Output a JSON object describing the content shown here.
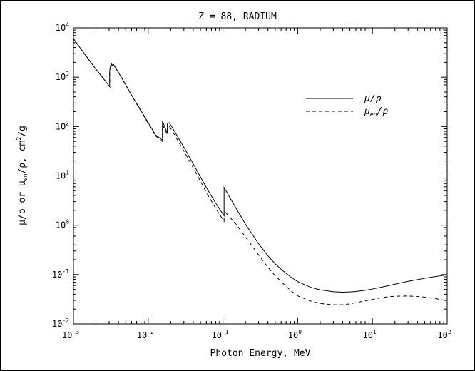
{
  "chart_data": {
    "type": "line",
    "title": "Z = 88,  RADIUM",
    "xlabel": "Photon Energy, MeV",
    "ylabel_parts": {
      "mu": "μ/ρ",
      "or": " or ",
      "mu_en": "μ",
      "en_sub": "en",
      "slash_rho": "/ρ,",
      "unit": " cm",
      "unit_exp": "2",
      "unit_end": "/g"
    },
    "x_scale": "log",
    "y_scale": "log",
    "xlim": [
      0.001,
      100
    ],
    "ylim": [
      0.01,
      10000
    ],
    "x_ticks": [
      {
        "base": "10",
        "exp": "-3",
        "value": 0.001
      },
      {
        "base": "10",
        "exp": "-2",
        "value": 0.01
      },
      {
        "base": "10",
        "exp": "-1",
        "value": 0.1
      },
      {
        "base": "10",
        "exp": "0",
        "value": 1
      },
      {
        "base": "10",
        "exp": "1",
        "value": 10
      },
      {
        "base": "10",
        "exp": "2",
        "value": 100
      }
    ],
    "y_ticks": [
      {
        "base": "10",
        "exp": "-2",
        "value": 0.01
      },
      {
        "base": "10",
        "exp": "-1",
        "value": 0.1
      },
      {
        "base": "10",
        "exp": "0",
        "value": 1
      },
      {
        "base": "10",
        "exp": "1",
        "value": 10
      },
      {
        "base": "10",
        "exp": "2",
        "value": 100
      },
      {
        "base": "10",
        "exp": "3",
        "value": 1000
      },
      {
        "base": "10",
        "exp": "4",
        "value": 10000
      }
    ],
    "legend": {
      "placement": "upper-right",
      "entries": [
        {
          "label_main": "μ/ρ",
          "label_sub": "",
          "label_end": "",
          "style": "solid"
        },
        {
          "label_main": "μ",
          "label_sub": "en",
          "label_end": "/ρ",
          "style": "dashed"
        }
      ]
    },
    "grid": false,
    "series": [
      {
        "style": "solid",
        "points": [
          [
            0.001,
            6000
          ],
          [
            0.0015,
            2600
          ],
          [
            0.002,
            1450
          ],
          [
            0.0025,
            950
          ],
          [
            0.00305,
            640
          ],
          [
            0.00305,
            1350
          ],
          [
            0.0032,
            1950
          ],
          [
            0.00325,
            1700
          ],
          [
            0.0034,
            1850
          ],
          [
            0.0036,
            1600
          ],
          [
            0.004,
            1250
          ],
          [
            0.005,
            700
          ],
          [
            0.006,
            430
          ],
          [
            0.008,
            210
          ],
          [
            0.01,
            120
          ],
          [
            0.0125,
            68
          ],
          [
            0.0155,
            53
          ],
          [
            0.0155,
            125
          ],
          [
            0.016,
            115
          ],
          [
            0.017,
            90
          ],
          [
            0.018,
            75
          ],
          [
            0.018,
            112
          ],
          [
            0.019,
            120
          ],
          [
            0.02,
            108
          ],
          [
            0.03,
            38
          ],
          [
            0.04,
            17.5
          ],
          [
            0.05,
            9.5
          ],
          [
            0.06,
            5.8
          ],
          [
            0.08,
            2.8
          ],
          [
            0.1035,
            1.55
          ],
          [
            0.1035,
            5.8
          ],
          [
            0.15,
            2.2
          ],
          [
            0.2,
            1.05
          ],
          [
            0.3,
            0.42
          ],
          [
            0.4,
            0.24
          ],
          [
            0.5,
            0.165
          ],
          [
            0.6,
            0.128
          ],
          [
            0.8,
            0.09
          ],
          [
            1,
            0.072
          ],
          [
            1.5,
            0.055
          ],
          [
            2,
            0.049
          ],
          [
            3,
            0.045
          ],
          [
            4,
            0.044
          ],
          [
            5,
            0.0445
          ],
          [
            6,
            0.0455
          ],
          [
            8,
            0.048
          ],
          [
            10,
            0.051
          ],
          [
            15,
            0.058
          ],
          [
            20,
            0.064
          ],
          [
            30,
            0.073
          ],
          [
            40,
            0.079
          ],
          [
            50,
            0.084
          ],
          [
            60,
            0.088
          ],
          [
            80,
            0.094
          ],
          [
            100,
            0.099
          ]
        ]
      },
      {
        "style": "dashed",
        "points": [
          [
            0.001,
            6000
          ],
          [
            0.0015,
            2600
          ],
          [
            0.002,
            1450
          ],
          [
            0.0025,
            950
          ],
          [
            0.00305,
            640
          ],
          [
            0.00305,
            1350
          ],
          [
            0.0032,
            1950
          ],
          [
            0.00325,
            1700
          ],
          [
            0.0034,
            1850
          ],
          [
            0.0036,
            1600
          ],
          [
            0.004,
            1250
          ],
          [
            0.005,
            690
          ],
          [
            0.006,
            425
          ],
          [
            0.008,
            205
          ],
          [
            0.01,
            115
          ],
          [
            0.0125,
            65
          ],
          [
            0.0155,
            50
          ],
          [
            0.0155,
            110
          ],
          [
            0.016,
            100
          ],
          [
            0.017,
            82
          ],
          [
            0.018,
            70
          ],
          [
            0.018,
            95
          ],
          [
            0.019,
            100
          ],
          [
            0.02,
            92
          ],
          [
            0.03,
            32
          ],
          [
            0.04,
            14.5
          ],
          [
            0.05,
            7.8
          ],
          [
            0.06,
            4.6
          ],
          [
            0.08,
            2.2
          ],
          [
            0.1035,
            1.2
          ],
          [
            0.1035,
            1.95
          ],
          [
            0.15,
            1.05
          ],
          [
            0.2,
            0.58
          ],
          [
            0.3,
            0.25
          ],
          [
            0.4,
            0.14
          ],
          [
            0.5,
            0.095
          ],
          [
            0.6,
            0.072
          ],
          [
            0.8,
            0.048
          ],
          [
            1,
            0.037
          ],
          [
            1.5,
            0.029
          ],
          [
            2,
            0.026
          ],
          [
            3,
            0.0245
          ],
          [
            4,
            0.0245
          ],
          [
            5,
            0.0255
          ],
          [
            6,
            0.027
          ],
          [
            8,
            0.0295
          ],
          [
            10,
            0.0315
          ],
          [
            15,
            0.035
          ],
          [
            20,
            0.0365
          ],
          [
            30,
            0.0368
          ],
          [
            40,
            0.036
          ],
          [
            50,
            0.035
          ],
          [
            60,
            0.0338
          ],
          [
            80,
            0.0315
          ],
          [
            100,
            0.029
          ]
        ]
      }
    ]
  }
}
